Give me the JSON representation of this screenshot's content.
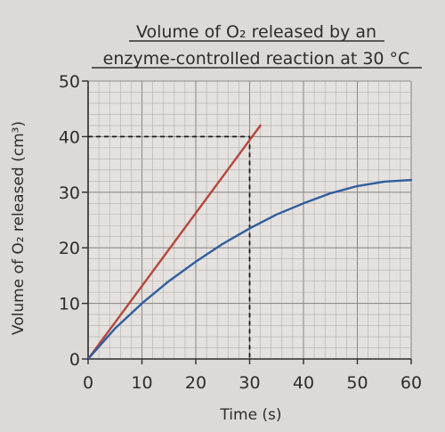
{
  "chart_data": {
    "type": "line",
    "title_line1": "Volume of O₂ released by an",
    "title_line2": "enzyme-controlled reaction at 30 °C",
    "xlabel": "Time (s)",
    "ylabel": "Volume of O₂ released (cm³)",
    "xlim": [
      0,
      60
    ],
    "ylim": [
      0,
      50
    ],
    "x_ticks": [
      0,
      10,
      20,
      30,
      40,
      50,
      60
    ],
    "y_ticks": [
      0,
      10,
      20,
      30,
      40,
      50
    ],
    "grid": true,
    "series": [
      {
        "color": "#b5473c",
        "x": [
          0,
          32
        ],
        "y": [
          0,
          42
        ]
      },
      {
        "color": "#2f5d9e",
        "x": [
          0,
          5,
          10,
          15,
          20,
          25,
          30,
          35,
          40,
          45,
          50,
          55,
          60
        ],
        "y": [
          0,
          5.5,
          10,
          14,
          17.5,
          20.7,
          23.5,
          26,
          28,
          29.8,
          31.1,
          31.9,
          32.2
        ]
      }
    ],
    "annotations": [
      {
        "type": "dashed-guide",
        "x": 30,
        "y": 40
      }
    ]
  }
}
